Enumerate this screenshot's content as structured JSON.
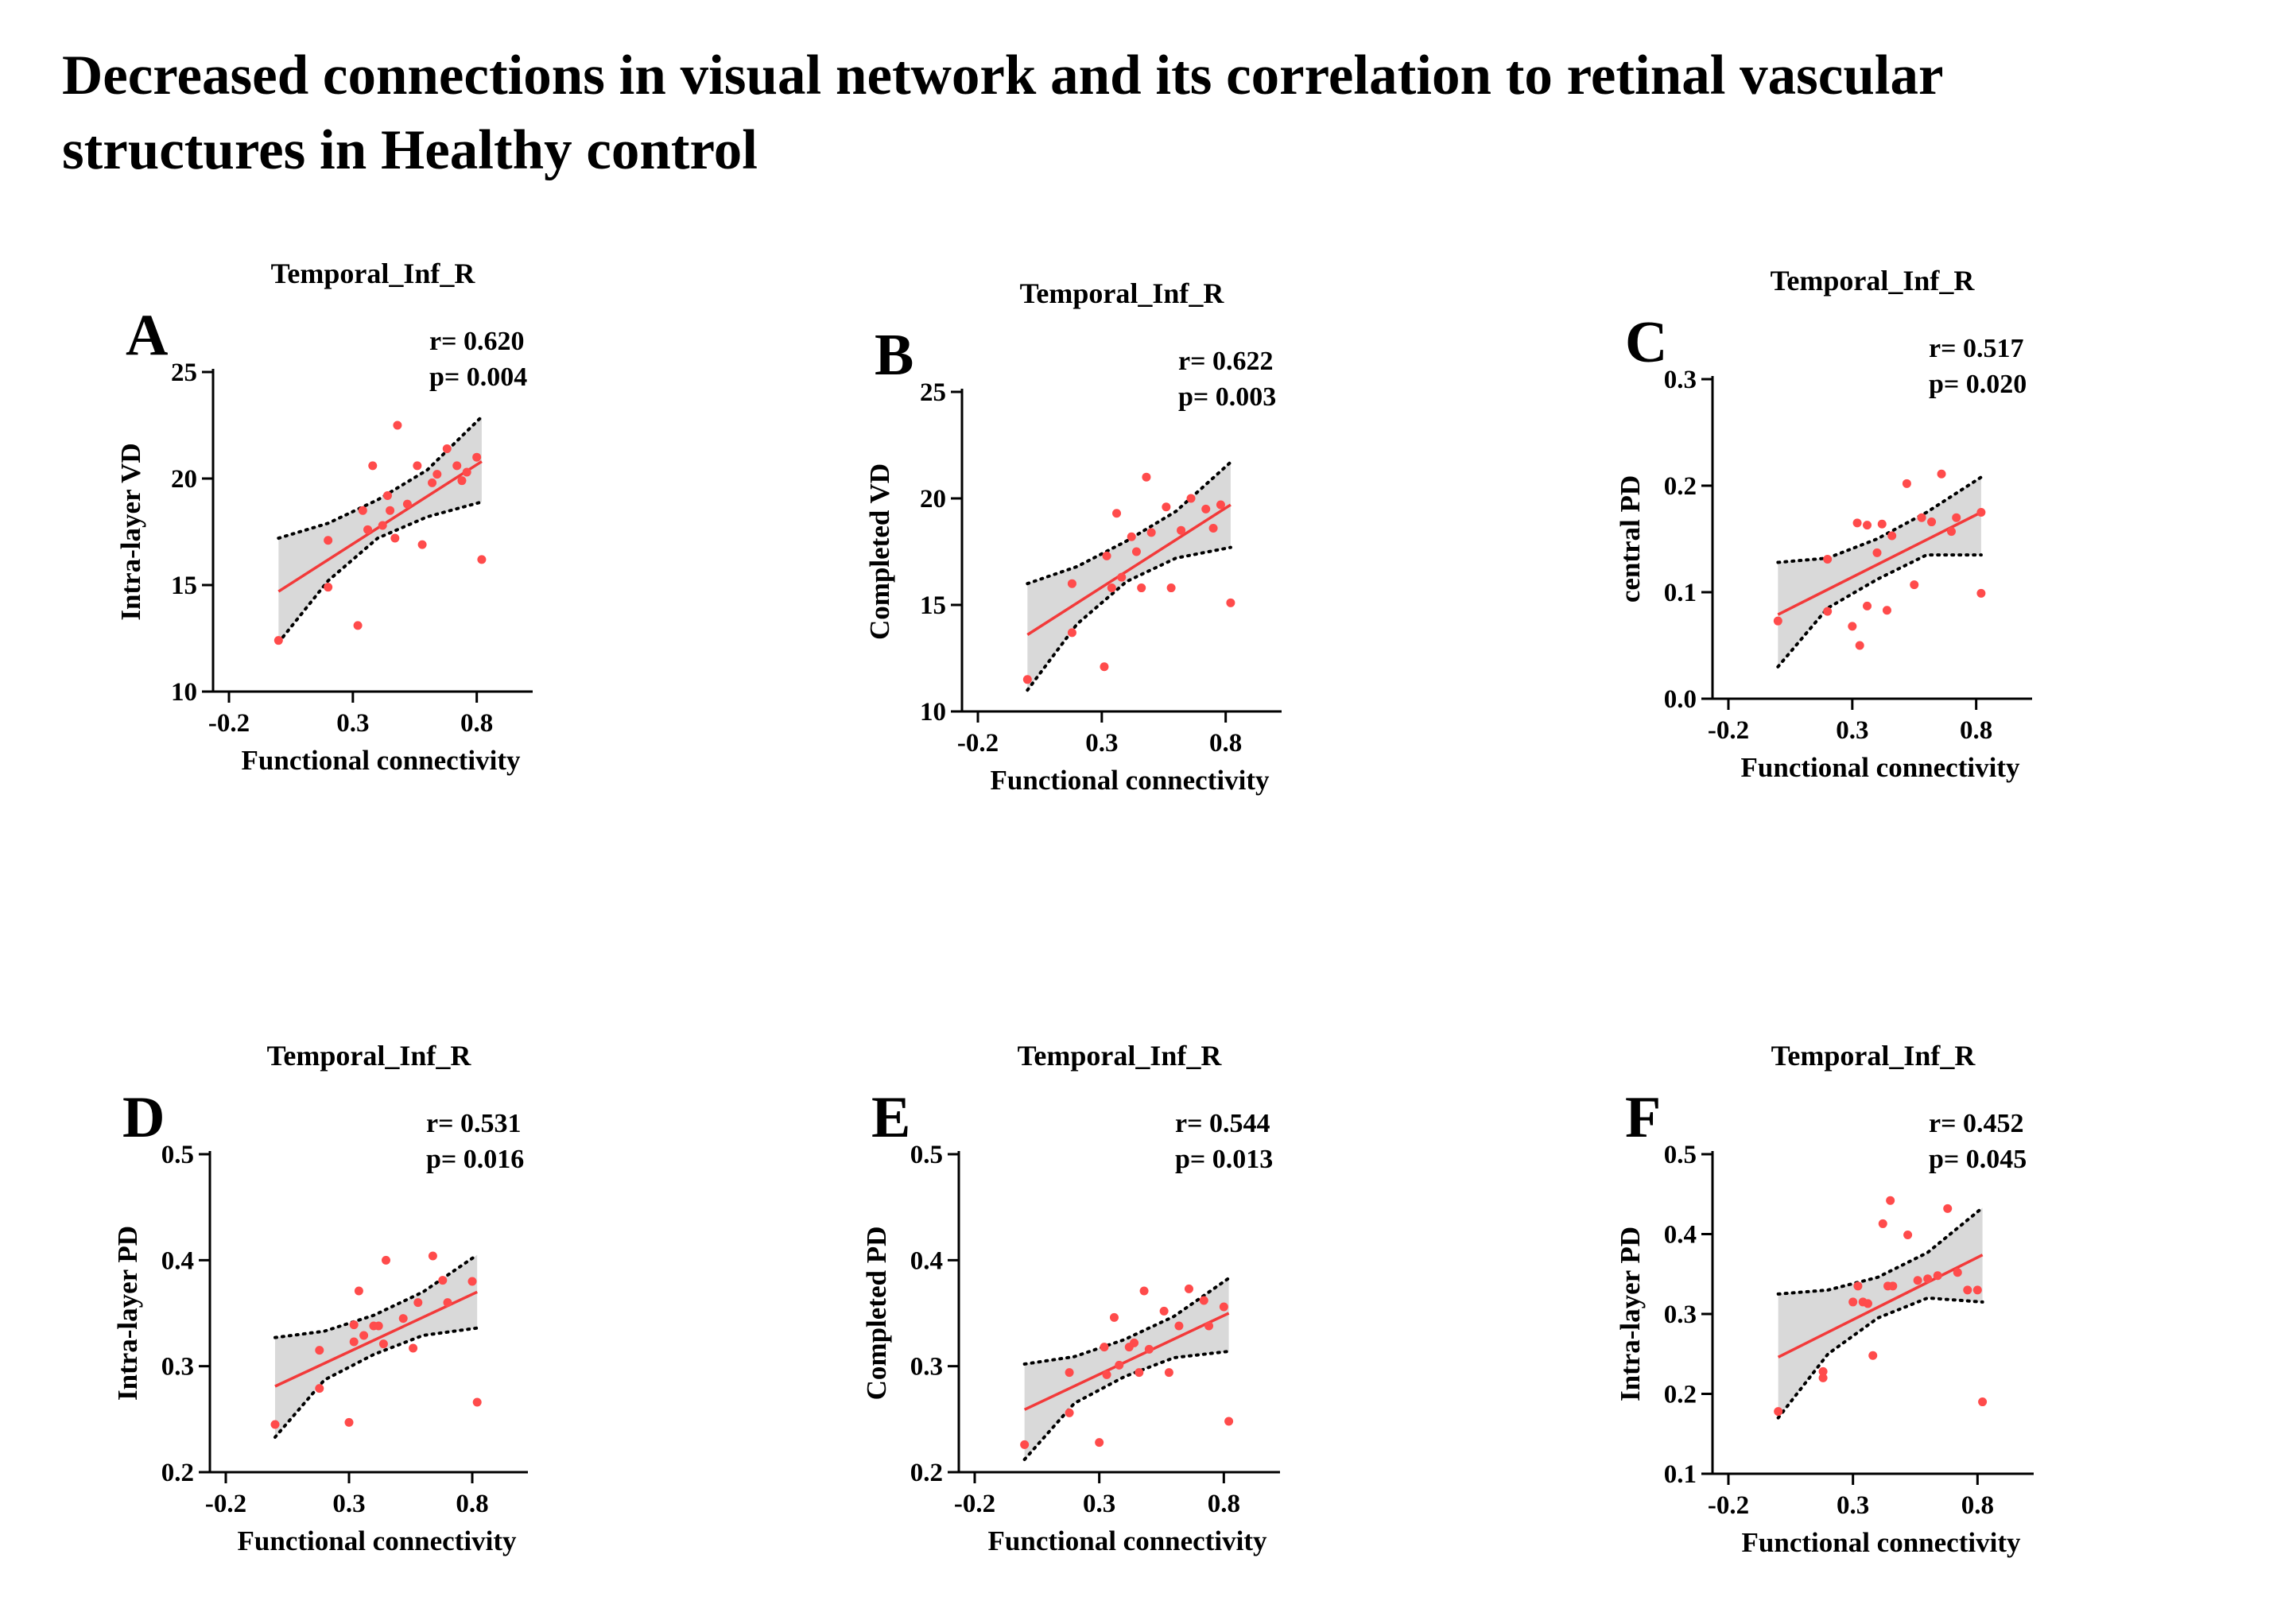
{
  "title": {
    "line1": "Decreased connections in visual network and its correlation to retinal vascular",
    "line2": "structures in Healthy control"
  },
  "colors": {
    "points": "#ff4b4b",
    "fit": "#f23a3a",
    "band": "#d9d9d9",
    "axis": "#000000"
  },
  "chart_data": [
    {
      "type": "scatter",
      "panel": "A",
      "title": "Temporal_Inf_R",
      "r_text": "r= 0.620",
      "p_text": "p= 0.004",
      "xlabel": "Functional connectivity",
      "ylabel": "Intra-layer VD",
      "xlim": [
        -0.2,
        1.0
      ],
      "ylim": [
        10,
        25
      ],
      "xticks": [
        -0.2,
        0.3,
        0.8
      ],
      "xtick_labels": [
        "-0.2",
        "0.3",
        "0.8"
      ],
      "yticks": [
        10,
        15,
        20,
        25
      ],
      "ytick_labels": [
        "10",
        "15",
        "20",
        "25"
      ],
      "fit": {
        "x": [
          0.0,
          0.82
        ],
        "y": [
          14.7,
          20.8
        ]
      },
      "band": {
        "x": [
          0.0,
          0.2,
          0.4,
          0.6,
          0.82
        ],
        "upper": [
          17.2,
          17.9,
          19.0,
          20.4,
          22.9
        ],
        "lower": [
          12.3,
          15.2,
          17.2,
          18.2,
          18.9
        ]
      },
      "x": [
        0.0,
        0.2,
        0.2,
        0.32,
        0.34,
        0.36,
        0.38,
        0.42,
        0.44,
        0.45,
        0.47,
        0.48,
        0.52,
        0.56,
        0.58,
        0.62,
        0.64,
        0.68,
        0.72,
        0.74,
        0.76,
        0.8,
        0.82
      ],
      "y": [
        12.4,
        17.1,
        14.9,
        13.1,
        18.5,
        17.6,
        20.6,
        17.8,
        19.2,
        18.5,
        17.2,
        22.5,
        18.8,
        20.6,
        16.9,
        19.8,
        20.2,
        21.4,
        20.6,
        19.9,
        20.3,
        21.0,
        16.2
      ]
    },
    {
      "type": "scatter",
      "panel": "B",
      "title": "Temporal_Inf_R",
      "r_text": "r= 0.622",
      "p_text": "p= 0.003",
      "xlabel": "Functional connectivity",
      "ylabel": "Completed VD",
      "xlim": [
        -0.2,
        1.0
      ],
      "ylim": [
        10,
        25
      ],
      "xticks": [
        -0.2,
        0.3,
        0.8
      ],
      "xtick_labels": [
        "-0.2",
        "0.3",
        "0.8"
      ],
      "yticks": [
        10,
        15,
        20,
        25
      ],
      "ytick_labels": [
        "10",
        "15",
        "20",
        "25"
      ],
      "fit": {
        "x": [
          0.0,
          0.82
        ],
        "y": [
          13.6,
          19.7
        ]
      },
      "band": {
        "x": [
          0.0,
          0.2,
          0.4,
          0.6,
          0.82
        ],
        "upper": [
          16.0,
          16.8,
          18.0,
          19.4,
          21.7
        ],
        "lower": [
          11.0,
          14.1,
          16.1,
          17.2,
          17.7
        ]
      },
      "x": [
        0.0,
        0.18,
        0.18,
        0.31,
        0.32,
        0.34,
        0.36,
        0.38,
        0.42,
        0.44,
        0.46,
        0.48,
        0.5,
        0.56,
        0.58,
        0.62,
        0.66,
        0.72,
        0.75,
        0.78,
        0.82
      ],
      "y": [
        11.5,
        16.0,
        13.7,
        12.1,
        17.3,
        15.8,
        19.3,
        16.3,
        18.2,
        17.5,
        15.8,
        21.0,
        18.4,
        19.6,
        15.8,
        18.5,
        20.0,
        19.5,
        18.6,
        19.7,
        15.1
      ]
    },
    {
      "type": "scatter",
      "panel": "C",
      "title": "Temporal_Inf_R",
      "r_text": "r= 0.517",
      "p_text": "p= 0.020",
      "xlabel": "Functional connectivity",
      "ylabel": "central PD",
      "xlim": [
        -0.2,
        1.0
      ],
      "ylim": [
        0.0,
        0.3
      ],
      "xticks": [
        -0.2,
        0.3,
        0.8
      ],
      "xtick_labels": [
        "-0.2",
        "0.3",
        "0.8"
      ],
      "yticks": [
        0.0,
        0.1,
        0.2,
        0.3
      ],
      "ytick_labels": [
        "0.0",
        "0.1",
        "0.2",
        "0.3"
      ],
      "fit": {
        "x": [
          0.0,
          0.82
        ],
        "y": [
          0.079,
          0.175
        ]
      },
      "band": {
        "x": [
          0.0,
          0.2,
          0.4,
          0.6,
          0.82
        ],
        "upper": [
          0.128,
          0.132,
          0.15,
          0.175,
          0.208
        ],
        "lower": [
          0.03,
          0.085,
          0.112,
          0.135,
          0.135
        ]
      },
      "x": [
        0.0,
        0.2,
        0.2,
        0.3,
        0.32,
        0.33,
        0.36,
        0.36,
        0.4,
        0.42,
        0.44,
        0.46,
        0.52,
        0.55,
        0.58,
        0.62,
        0.66,
        0.7,
        0.72,
        0.82,
        0.82
      ],
      "y": [
        0.073,
        0.131,
        0.082,
        0.068,
        0.165,
        0.05,
        0.163,
        0.087,
        0.137,
        0.164,
        0.083,
        0.153,
        0.202,
        0.107,
        0.17,
        0.166,
        0.211,
        0.157,
        0.17,
        0.175,
        0.099
      ]
    },
    {
      "type": "scatter",
      "panel": "D",
      "title": "Temporal_Inf_R",
      "r_text": "r= 0.531",
      "p_text": "p= 0.016",
      "xlabel": "Functional connectivity",
      "ylabel": "Intra-layer PD",
      "xlim": [
        -0.2,
        1.0
      ],
      "ylim": [
        0.2,
        0.5
      ],
      "xticks": [
        -0.2,
        0.3,
        0.8
      ],
      "xtick_labels": [
        "-0.2",
        "0.3",
        "0.8"
      ],
      "yticks": [
        0.2,
        0.3,
        0.4,
        0.5
      ],
      "ytick_labels": [
        "0.2",
        "0.3",
        "0.4",
        "0.5"
      ],
      "fit": {
        "x": [
          0.0,
          0.82
        ],
        "y": [
          0.281,
          0.37
        ]
      },
      "band": {
        "x": [
          0.0,
          0.2,
          0.4,
          0.6,
          0.82
        ],
        "upper": [
          0.327,
          0.333,
          0.348,
          0.37,
          0.405
        ],
        "lower": [
          0.233,
          0.287,
          0.311,
          0.329,
          0.336
        ]
      },
      "x": [
        0.0,
        0.18,
        0.18,
        0.3,
        0.32,
        0.32,
        0.34,
        0.36,
        0.4,
        0.42,
        0.44,
        0.45,
        0.52,
        0.56,
        0.58,
        0.64,
        0.68,
        0.7,
        0.8,
        0.82
      ],
      "y": [
        0.245,
        0.315,
        0.279,
        0.247,
        0.323,
        0.339,
        0.371,
        0.329,
        0.338,
        0.338,
        0.321,
        0.4,
        0.345,
        0.317,
        0.36,
        0.404,
        0.381,
        0.36,
        0.38,
        0.266
      ]
    },
    {
      "type": "scatter",
      "panel": "E",
      "title": "Temporal_Inf_R",
      "r_text": "r= 0.544",
      "p_text": "p= 0.013",
      "xlabel": "Functional connectivity",
      "ylabel": "Completed PD",
      "xlim": [
        -0.2,
        1.0
      ],
      "ylim": [
        0.2,
        0.5
      ],
      "xticks": [
        -0.2,
        0.3,
        0.8
      ],
      "xtick_labels": [
        "-0.2",
        "0.3",
        "0.8"
      ],
      "yticks": [
        0.2,
        0.3,
        0.4,
        0.5
      ],
      "ytick_labels": [
        "0.2",
        "0.3",
        "0.4",
        "0.5"
      ],
      "fit": {
        "x": [
          0.0,
          0.82
        ],
        "y": [
          0.259,
          0.35
        ]
      },
      "band": {
        "x": [
          0.0,
          0.2,
          0.4,
          0.6,
          0.82
        ],
        "upper": [
          0.302,
          0.309,
          0.325,
          0.347,
          0.383
        ],
        "lower": [
          0.212,
          0.265,
          0.29,
          0.308,
          0.314
        ]
      },
      "x": [
        0.0,
        0.18,
        0.18,
        0.3,
        0.32,
        0.33,
        0.36,
        0.38,
        0.42,
        0.44,
        0.46,
        0.48,
        0.5,
        0.56,
        0.58,
        0.62,
        0.66,
        0.72,
        0.74,
        0.8,
        0.82
      ],
      "y": [
        0.226,
        0.294,
        0.256,
        0.228,
        0.318,
        0.292,
        0.346,
        0.301,
        0.318,
        0.322,
        0.294,
        0.371,
        0.316,
        0.352,
        0.294,
        0.338,
        0.373,
        0.362,
        0.338,
        0.356,
        0.248
      ]
    },
    {
      "type": "scatter",
      "panel": "F",
      "title": "Temporal_Inf_R",
      "r_text": "r= 0.452",
      "p_text": "p= 0.045",
      "xlabel": "Functional connectivity",
      "ylabel": "Intra-layer PD",
      "xlim": [
        -0.2,
        1.0
      ],
      "ylim": [
        0.1,
        0.5
      ],
      "xticks": [
        -0.2,
        0.3,
        0.8
      ],
      "xtick_labels": [
        "-0.2",
        "0.3",
        "0.8"
      ],
      "yticks": [
        0.1,
        0.2,
        0.3,
        0.4,
        0.5
      ],
      "ytick_labels": [
        "0.1",
        "0.2",
        "0.3",
        "0.4",
        "0.5"
      ],
      "fit": {
        "x": [
          0.0,
          0.82
        ],
        "y": [
          0.246,
          0.374
        ]
      },
      "band": {
        "x": [
          0.0,
          0.2,
          0.4,
          0.6,
          0.82
        ],
        "upper": [
          0.325,
          0.33,
          0.346,
          0.377,
          0.433
        ],
        "lower": [
          0.17,
          0.25,
          0.295,
          0.32,
          0.315
        ]
      },
      "x": [
        0.0,
        0.18,
        0.18,
        0.3,
        0.32,
        0.34,
        0.36,
        0.38,
        0.42,
        0.44,
        0.45,
        0.46,
        0.52,
        0.56,
        0.6,
        0.64,
        0.68,
        0.72,
        0.76,
        0.8,
        0.82
      ],
      "y": [
        0.178,
        0.228,
        0.22,
        0.315,
        0.335,
        0.315,
        0.313,
        0.248,
        0.413,
        0.335,
        0.442,
        0.335,
        0.399,
        0.342,
        0.344,
        0.348,
        0.432,
        0.352,
        0.33,
        0.33,
        0.19
      ]
    }
  ]
}
